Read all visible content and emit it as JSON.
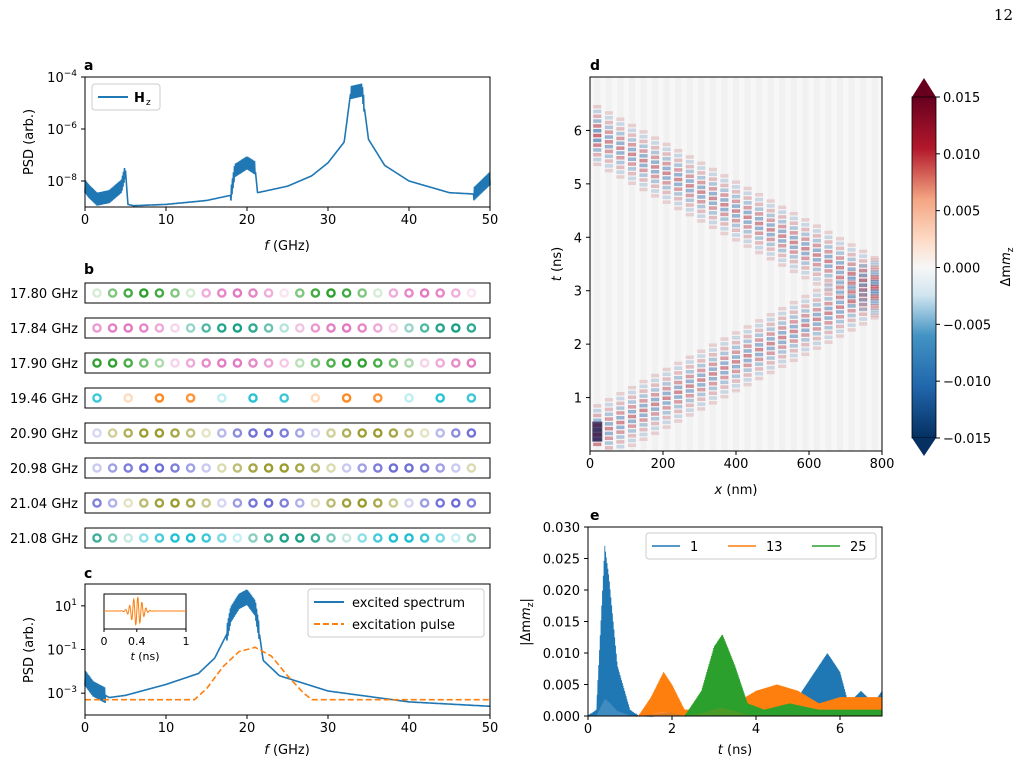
{
  "page_number": "12",
  "panels": {
    "a": {
      "label": "a",
      "ylabel": "PSD (arb.)",
      "xlabel": "f (GHz)",
      "legend": "H",
      "legend_sub": "z",
      "yticks": [
        "10",
        "10",
        "10"
      ],
      "ytick_exp": [
        "−8",
        "−6",
        "−4"
      ],
      "xticks": [
        "0",
        "10",
        "20",
        "30",
        "40",
        "50"
      ]
    },
    "b": {
      "label": "b",
      "rows": [
        "17.80 GHz",
        "17.84 GHz",
        "17.90 GHz",
        "19.46 GHz",
        "20.90 GHz",
        "20.98 GHz",
        "21.04 GHz",
        "21.08 GHz"
      ]
    },
    "c": {
      "label": "c",
      "ylabel": "PSD (arb.)",
      "xlabel": "f (GHz)",
      "legend": [
        "excited spectrum",
        "excitation pulse"
      ],
      "yticks": [
        "10",
        "10",
        "10"
      ],
      "ytick_exp": [
        "−3",
        "−1",
        "1"
      ],
      "xticks": [
        "0",
        "10",
        "20",
        "30",
        "40",
        "50"
      ],
      "inset": {
        "xticks": [
          "0",
          "0.4",
          "1"
        ],
        "xlabel": "t (ns)"
      }
    },
    "d": {
      "label": "d",
      "xlabel": "x (nm)",
      "ylabel": "t (ns)",
      "xticks": [
        "0",
        "200",
        "400",
        "600",
        "800"
      ],
      "yticks": [
        "1",
        "2",
        "3",
        "4",
        "5",
        "6"
      ],
      "colorbar": {
        "label": "Δm",
        "label_sub": "z",
        "ticks": [
          "0.015",
          "0.010",
          "0.005",
          "0.000",
          "−0.005",
          "−0.010",
          "−0.015"
        ]
      }
    },
    "e": {
      "label": "e",
      "xlabel": "t (ns)",
      "ylabel": "|Δm",
      "yticks": [
        "0.000",
        "0.005",
        "0.010",
        "0.015",
        "0.020",
        "0.025",
        "0.030"
      ],
      "xticks": [
        "0",
        "2",
        "4",
        "6"
      ],
      "legend": [
        "1",
        "13",
        "25"
      ]
    }
  },
  "colors": {
    "blue": "#1f77b4",
    "orange": "#ff7f0e",
    "green": "#2ca02c"
  },
  "chart_data": [
    {
      "panel": "a",
      "type": "line",
      "title": "",
      "xlabel": "f (GHz)",
      "ylabel": "PSD (arb.)",
      "xlim": [
        0,
        50
      ],
      "ylim_log10": [
        -9,
        -4
      ],
      "yscale": "log",
      "series": [
        {
          "name": "Hz",
          "x": [
            0,
            0.5,
            1.5,
            3,
            4.5,
            5.0,
            5.3,
            6,
            10,
            15,
            18,
            18.5,
            20,
            21,
            21.3,
            25,
            28,
            30,
            32,
            32.8,
            34.2,
            35,
            37,
            40,
            45,
            48,
            50
          ],
          "y_log10": [
            -8.2,
            -8.4,
            -8.7,
            -8.6,
            -8.2,
            -7.6,
            -8.9,
            -8.95,
            -8.9,
            -8.75,
            -8.55,
            -7.6,
            -7.3,
            -7.5,
            -8.45,
            -8.2,
            -7.8,
            -7.3,
            -6.5,
            -4.6,
            -4.5,
            -6.4,
            -7.4,
            -8.0,
            -8.45,
            -8.5,
            -7.9
          ]
        }
      ]
    },
    {
      "panel": "c",
      "type": "line",
      "title": "",
      "xlabel": "f (GHz)",
      "ylabel": "PSD (arb.)",
      "xlim": [
        0,
        50
      ],
      "ylim_log10": [
        -4,
        2
      ],
      "yscale": "log",
      "series": [
        {
          "name": "excited spectrum",
          "x": [
            0,
            1,
            2,
            3,
            5,
            10,
            14,
            16,
            17.5,
            18,
            19,
            20,
            21,
            21.5,
            22,
            24,
            30,
            40,
            50
          ],
          "y_log10": [
            -2.3,
            -2.8,
            -3.0,
            -3.2,
            -3.1,
            -2.6,
            -2.1,
            -1.4,
            -0.3,
            0.6,
            1.2,
            1.4,
            0.9,
            -0.2,
            -1.5,
            -2.2,
            -2.9,
            -3.4,
            -3.6
          ]
        },
        {
          "name": "excitation pulse",
          "x": [
            0,
            13.5,
            15,
            17,
            19,
            21,
            23,
            25,
            27,
            28,
            50
          ],
          "y_log10": [
            -3.3,
            -3.3,
            -2.8,
            -1.8,
            -1.1,
            -0.9,
            -1.3,
            -2.2,
            -3.0,
            -3.3,
            -3.3
          ]
        }
      ]
    },
    {
      "panel": "c-inset",
      "type": "line",
      "xlabel": "t (ns)",
      "xlim": [
        0,
        1
      ],
      "series": [
        {
          "name": "pulse",
          "x": [
            0,
            0.2,
            0.3,
            0.4,
            0.5,
            0.6,
            1
          ],
          "y": [
            0,
            0,
            0.5,
            1,
            0.5,
            0,
            0
          ]
        }
      ]
    },
    {
      "panel": "d",
      "type": "heatmap",
      "xlabel": "x (nm)",
      "ylabel": "t (ns)",
      "xlim": [
        0,
        800
      ],
      "ylim": [
        0,
        7
      ],
      "colorbar": {
        "label": "Δmz",
        "range": [
          -0.015,
          0.015
        ]
      },
      "wavefronts": [
        {
          "x": [
            20,
            800
          ],
          "t": [
            0.3,
            3.1
          ]
        },
        {
          "x": [
            20,
            800
          ],
          "t": [
            5.9,
            3.0
          ]
        }
      ]
    },
    {
      "panel": "e",
      "type": "line",
      "xlabel": "t (ns)",
      "ylabel": "|Δmz|",
      "xlim": [
        0,
        7
      ],
      "ylim": [
        0,
        0.03
      ],
      "series": [
        {
          "name": "1",
          "x": [
            0,
            0.2,
            0.4,
            0.5,
            0.7,
            1.0,
            1.2,
            5.0,
            5.5,
            5.7,
            6.0,
            6.2,
            6.5,
            6.8,
            7.0
          ],
          "y": [
            0,
            0.001,
            0.027,
            0.022,
            0.008,
            0.001,
            0,
            0.003,
            0.008,
            0.01,
            0.007,
            0.002,
            0.004,
            0.002,
            0.004
          ]
        },
        {
          "name": "13",
          "x": [
            1.2,
            1.5,
            1.8,
            2.0,
            2.3,
            3.0,
            3.5,
            4.0,
            4.5,
            5.0,
            5.5,
            6.0,
            7.0
          ],
          "y": [
            0,
            0.003,
            0.007,
            0.005,
            0.001,
            0.001,
            0.002,
            0.004,
            0.005,
            0.004,
            0.002,
            0.003,
            0.003
          ]
        },
        {
          "name": "25",
          "x": [
            2.3,
            2.7,
            3.0,
            3.2,
            3.5,
            3.8,
            4.2,
            4.8,
            5.5,
            6.0,
            7.0
          ],
          "y": [
            0,
            0.004,
            0.011,
            0.013,
            0.008,
            0.002,
            0.001,
            0.002,
            0.001,
            0.001,
            0.001
          ]
        }
      ]
    }
  ]
}
